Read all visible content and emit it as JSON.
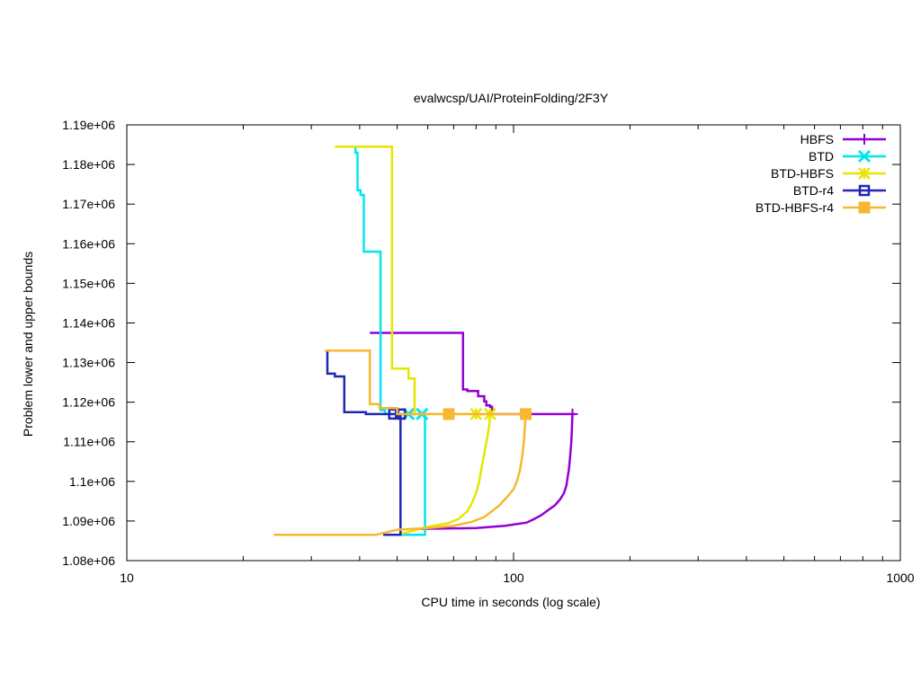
{
  "chart_data": {
    "type": "line",
    "title": "evalwcsp/UAI/ProteinFolding/2F3Y",
    "xlabel": "CPU time in seconds (log scale)",
    "ylabel": "Problem lower and upper bounds",
    "xscale": "log",
    "xlim": [
      10,
      1000
    ],
    "ylim": [
      1080000,
      1190000
    ],
    "grid": false,
    "legend_position": "top-right",
    "x_ticks": [
      {
        "value": 10,
        "label": "10"
      },
      {
        "value": 100,
        "label": "100"
      },
      {
        "value": 1000,
        "label": "1000"
      }
    ],
    "y_ticks": [
      {
        "value": 1080000,
        "label": "1.08e+06"
      },
      {
        "value": 1090000,
        "label": "1.09e+06"
      },
      {
        "value": 1100000,
        "label": "1.1e+06"
      },
      {
        "value": 1110000,
        "label": "1.11e+06"
      },
      {
        "value": 1120000,
        "label": "1.12e+06"
      },
      {
        "value": 1130000,
        "label": "1.13e+06"
      },
      {
        "value": 1140000,
        "label": "1.14e+06"
      },
      {
        "value": 1150000,
        "label": "1.15e+06"
      },
      {
        "value": 1160000,
        "label": "1.16e+06"
      },
      {
        "value": 1170000,
        "label": "1.17e+06"
      },
      {
        "value": 1180000,
        "label": "1.18e+06"
      },
      {
        "value": 1190000,
        "label": "1.19e+06"
      }
    ],
    "series": [
      {
        "name": "HBFS",
        "color": "#9400d3",
        "marker": "plus",
        "upper": [
          [
            42.5,
            1137500
          ],
          [
            74,
            1137500
          ],
          [
            74,
            1123200
          ],
          [
            76,
            1123200
          ],
          [
            76,
            1122800
          ],
          [
            81,
            1122800
          ],
          [
            81,
            1121500
          ],
          [
            84,
            1121500
          ],
          [
            84,
            1120200
          ],
          [
            85,
            1120200
          ],
          [
            85,
            1119200
          ],
          [
            87,
            1119200
          ],
          [
            87,
            1118800
          ],
          [
            88,
            1118800
          ],
          [
            88,
            1117000
          ],
          [
            144,
            1117000
          ]
        ],
        "lower": [
          [
            55,
            1088000
          ],
          [
            80,
            1088200
          ],
          [
            95,
            1088800
          ],
          [
            108,
            1089600
          ],
          [
            113,
            1090500
          ],
          [
            118,
            1091500
          ],
          [
            123,
            1092800
          ],
          [
            128,
            1094000
          ],
          [
            132,
            1095500
          ],
          [
            135,
            1097000
          ],
          [
            137,
            1099000
          ],
          [
            138,
            1101000
          ],
          [
            139,
            1103000
          ],
          [
            140,
            1106000
          ],
          [
            141,
            1110000
          ],
          [
            141.5,
            1113000
          ],
          [
            142,
            1117000
          ]
        ],
        "markers": [
          [
            142,
            1117000
          ]
        ]
      },
      {
        "name": "BTD",
        "color": "#00e5ee",
        "marker": "x",
        "upper": [
          [
            39,
            1184500
          ],
          [
            39,
            1183000
          ],
          [
            39.5,
            1183000
          ],
          [
            39.5,
            1173500
          ],
          [
            40.2,
            1173500
          ],
          [
            40.2,
            1172300
          ],
          [
            41,
            1172300
          ],
          [
            41,
            1158000
          ],
          [
            45.3,
            1158000
          ],
          [
            45.3,
            1118000
          ],
          [
            46.5,
            1118000
          ],
          [
            46.5,
            1117000
          ],
          [
            59,
            1117000
          ]
        ],
        "lower": [
          [
            48,
            1086500
          ],
          [
            59,
            1086500
          ],
          [
            59,
            1117000
          ]
        ],
        "markers": [
          [
            53.5,
            1117000
          ],
          [
            58,
            1117000
          ]
        ]
      },
      {
        "name": "BTD-HBFS",
        "color": "#e6e600",
        "marker": "star",
        "upper": [
          [
            34.5,
            1184500
          ],
          [
            48.5,
            1184500
          ],
          [
            48.5,
            1128500
          ],
          [
            53.5,
            1128500
          ],
          [
            53.5,
            1126000
          ],
          [
            55.5,
            1126000
          ],
          [
            55.5,
            1117000
          ],
          [
            88,
            1117000
          ]
        ],
        "lower": [
          [
            50,
            1086500
          ],
          [
            60,
            1088500
          ],
          [
            68,
            1089500
          ],
          [
            72,
            1090500
          ],
          [
            76,
            1092500
          ],
          [
            78,
            1094500
          ],
          [
            80,
            1097000
          ],
          [
            81.5,
            1100000
          ],
          [
            82.5,
            1103000
          ],
          [
            84,
            1107000
          ],
          [
            85.5,
            1111000
          ],
          [
            86.5,
            1114000
          ],
          [
            87,
            1117000
          ]
        ],
        "markers": [
          [
            80,
            1117000
          ],
          [
            87,
            1117000
          ]
        ]
      },
      {
        "name": "BTD-r4",
        "color": "#1e28b4",
        "marker": "square",
        "upper": [
          [
            33,
            1133000
          ],
          [
            33,
            1127200
          ],
          [
            34.5,
            1127200
          ],
          [
            34.5,
            1126500
          ],
          [
            36.5,
            1126500
          ],
          [
            36.5,
            1117500
          ],
          [
            41.5,
            1117500
          ],
          [
            41.5,
            1117000
          ],
          [
            51,
            1117000
          ]
        ],
        "lower": [
          [
            46,
            1086500
          ],
          [
            51,
            1086500
          ],
          [
            51,
            1117000
          ]
        ],
        "markers": [
          [
            49,
            1117000
          ],
          [
            51,
            1117000
          ]
        ]
      },
      {
        "name": "BTD-HBFS-r4",
        "color": "#f7b731",
        "marker": "filled-square",
        "upper": [
          [
            32.5,
            1133000
          ],
          [
            42.5,
            1133000
          ],
          [
            42.5,
            1119500
          ],
          [
            45,
            1119500
          ],
          [
            45,
            1118500
          ],
          [
            50,
            1118500
          ],
          [
            50,
            1117000
          ],
          [
            108,
            1117000
          ]
        ],
        "lower": [
          [
            24,
            1086500
          ],
          [
            44,
            1086500
          ],
          [
            50,
            1087800
          ],
          [
            60,
            1088200
          ],
          [
            70,
            1088800
          ],
          [
            78,
            1089800
          ],
          [
            84,
            1091000
          ],
          [
            88,
            1092500
          ],
          [
            92,
            1094000
          ],
          [
            96,
            1096000
          ],
          [
            100,
            1098000
          ],
          [
            102,
            1100000
          ],
          [
            104,
            1103000
          ],
          [
            105.5,
            1107000
          ],
          [
            106.5,
            1111000
          ],
          [
            107,
            1114000
          ],
          [
            107.5,
            1117000
          ]
        ],
        "markers": [
          [
            68,
            1117000
          ],
          [
            107.5,
            1117000
          ]
        ]
      }
    ]
  }
}
